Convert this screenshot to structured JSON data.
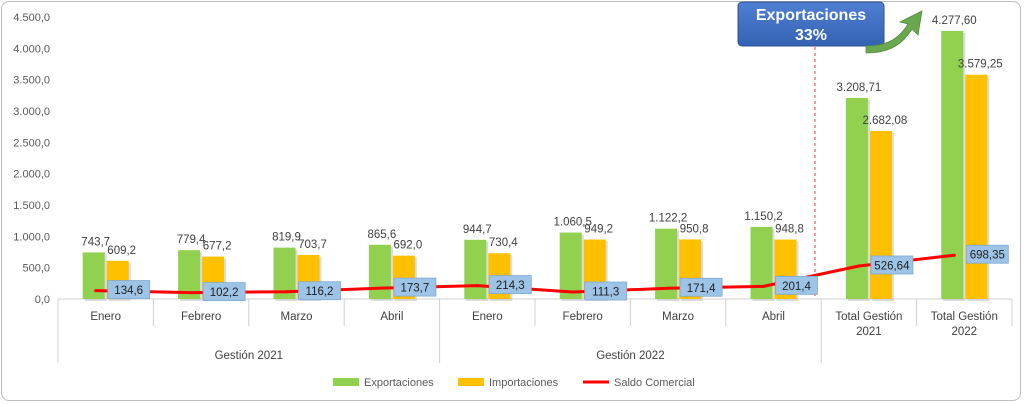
{
  "chart_data": {
    "type": "bar",
    "y_ticks": [
      "0,0",
      "500,0",
      "1.000,0",
      "1.500,0",
      "2.000,0",
      "2.500,0",
      "3.000,0",
      "3.500,0",
      "4.000,0",
      "4.500,0"
    ],
    "ylim": [
      0,
      4500
    ],
    "categories": [
      "Enero",
      "Febrero",
      "Marzo",
      "Abril",
      "Enero",
      "Febrero",
      "Marzo",
      "Abril",
      "Total Gestión 2021",
      "Total Gestión 2022"
    ],
    "category_lines": [
      [
        "Enero"
      ],
      [
        "Febrero"
      ],
      [
        "Marzo"
      ],
      [
        "Abril"
      ],
      [
        "Enero"
      ],
      [
        "Febrero"
      ],
      [
        "Marzo"
      ],
      [
        "Abril"
      ],
      [
        "Total Gestión",
        "2021"
      ],
      [
        "Total Gestión",
        "2022"
      ]
    ],
    "groups": [
      {
        "label": "Gestión 2021",
        "categories": [
          0,
          1,
          2,
          3
        ]
      },
      {
        "label": "Gestión 2022",
        "categories": [
          4,
          5,
          6,
          7
        ]
      }
    ],
    "series": [
      {
        "name": "Exportaciones",
        "type": "bar",
        "color": "#92d050",
        "values": [
          743.7,
          779.4,
          819.9,
          865.6,
          944.7,
          1060.5,
          1122.2,
          1150.2,
          3208.71,
          4277.6
        ],
        "labels": [
          "743,7",
          "779,4",
          "819,9",
          "865,6",
          "944,7",
          "1.060,5",
          "1.122,2",
          "1.150,2",
          "3.208,71",
          "4.277,60"
        ]
      },
      {
        "name": "Importaciones",
        "type": "bar",
        "color": "#ffc000",
        "values": [
          609.2,
          677.2,
          703.7,
          692.0,
          730.4,
          949.2,
          950.8,
          948.8,
          2682.08,
          3579.25
        ],
        "labels": [
          "609,2",
          "677,2",
          "703,7",
          "692,0",
          "730,4",
          "949,2",
          "950,8",
          "948,8",
          "2.682,08",
          "3.579,25"
        ]
      },
      {
        "name": "Saldo Comercial",
        "type": "line",
        "color": "#ff0000",
        "values": [
          134.6,
          102.2,
          116.2,
          173.7,
          214.3,
          111.3,
          171.4,
          201.4,
          526.64,
          698.35
        ],
        "labels": [
          "134,6",
          "102,2",
          "116,2",
          "173,7",
          "214,3",
          "111,3",
          "171,4",
          "201,4",
          "526,64",
          "698,35"
        ]
      }
    ],
    "callout": {
      "line1": "Exportaciones",
      "line2": "33%",
      "color": "#4472c4",
      "arrow_color": "#70ad47"
    },
    "legend_position": "bottom",
    "grid": false
  }
}
